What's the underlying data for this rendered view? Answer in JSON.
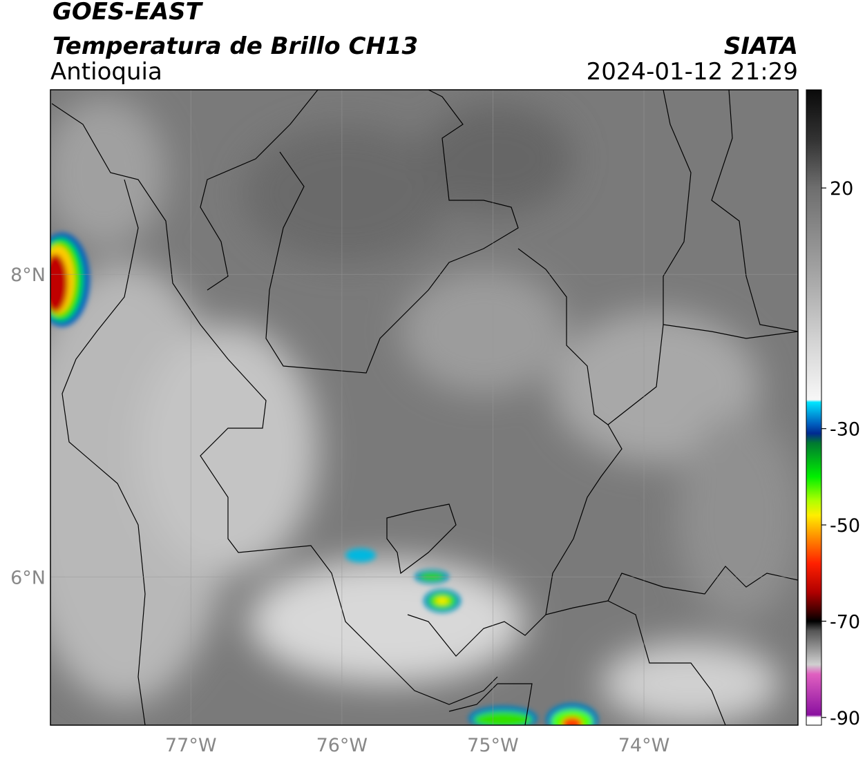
{
  "header": {
    "line1": "GOES-EAST",
    "title": "Temperatura de Brillo CH13",
    "region": "Antioquia",
    "source": "SIATA",
    "datetime": "2024-01-12 21:29"
  },
  "map": {
    "lonlim": [
      -77.93,
      -72.98
    ],
    "latlim": [
      5.02,
      9.22
    ],
    "lonticks": [
      {
        "value": -77,
        "label": "77°W"
      },
      {
        "value": -76,
        "label": "76°W"
      },
      {
        "value": -75,
        "label": "75°W"
      },
      {
        "value": -74,
        "label": "74°W"
      }
    ],
    "latticks": [
      {
        "value": 8,
        "label": "8°N"
      },
      {
        "value": 6,
        "label": "6°N"
      }
    ],
    "grid": true
  },
  "colorbar": {
    "vlim": [
      -91.6,
      40.4
    ],
    "ticks": [
      20,
      -30,
      -50,
      -70,
      -90
    ],
    "colormap": [
      {
        "value": 40.4,
        "color": "#0a0a0a"
      },
      {
        "value": 30,
        "color": "#333333"
      },
      {
        "value": 20,
        "color": "#6e6e6e"
      },
      {
        "value": 0,
        "color": "#ababab"
      },
      {
        "value": -12,
        "color": "#d4d4d4"
      },
      {
        "value": -24,
        "color": "#f7f7f7"
      },
      {
        "value": -24.5,
        "color": "#00e5ff"
      },
      {
        "value": -29,
        "color": "#0060c0"
      },
      {
        "value": -31,
        "color": "#002a90"
      },
      {
        "value": -33,
        "color": "#007a30"
      },
      {
        "value": -40,
        "color": "#00f000"
      },
      {
        "value": -45,
        "color": "#b0ff00"
      },
      {
        "value": -48,
        "color": "#ffee00"
      },
      {
        "value": -52,
        "color": "#ff9900"
      },
      {
        "value": -58,
        "color": "#ff2000"
      },
      {
        "value": -64,
        "color": "#b00000"
      },
      {
        "value": -68,
        "color": "#400000"
      },
      {
        "value": -70,
        "color": "#000000"
      },
      {
        "value": -72,
        "color": "#555555"
      },
      {
        "value": -79,
        "color": "#d0d0d0"
      },
      {
        "value": -81,
        "color": "#e060c0"
      },
      {
        "value": -89.5,
        "color": "#8a10a0"
      },
      {
        "value": -90,
        "color": "#ffffff"
      },
      {
        "value": -91.6,
        "color": "#ffffff"
      }
    ]
  }
}
